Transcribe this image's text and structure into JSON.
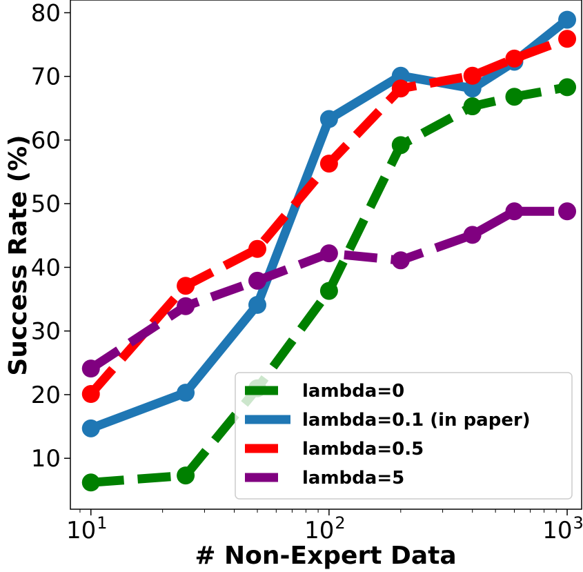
{
  "chart_data": {
    "type": "line",
    "title": "",
    "xlabel": "# Non-Expert Data",
    "ylabel": "Success Rate (%)",
    "xscale": "log",
    "xlim": [
      8.2,
      1150
    ],
    "ylim": [
      2,
      82
    ],
    "grid": false,
    "legend_position": "bottom-right",
    "x_ticks": [
      {
        "value": 10,
        "base": "10",
        "exp": "1"
      },
      {
        "value": 100,
        "base": "10",
        "exp": "2"
      },
      {
        "value": 1000,
        "base": "10",
        "exp": "3"
      }
    ],
    "y_ticks": [
      10,
      20,
      30,
      40,
      50,
      60,
      70,
      80
    ],
    "x": [
      10,
      25,
      50,
      100,
      200,
      400,
      600,
      1000
    ],
    "series": [
      {
        "name": "lambda=0",
        "color": "#008000",
        "style": "dashed",
        "values": [
          6.2,
          7.3,
          21.0,
          36.3,
          59.2,
          65.3,
          66.8,
          68.3
        ]
      },
      {
        "name": "lambda=0.1 (in paper)",
        "color": "#1f77b4",
        "style": "solid",
        "values": [
          14.7,
          20.3,
          34.1,
          63.3,
          70.1,
          68.1,
          72.3,
          78.9
        ]
      },
      {
        "name": "lambda=0.5",
        "color": "#ff0000",
        "style": "dashed",
        "values": [
          20.1,
          37.1,
          42.9,
          56.3,
          68.1,
          70.1,
          72.8,
          75.9
        ]
      },
      {
        "name": "lambda=5",
        "color": "#800080",
        "style": "dashed",
        "values": [
          24.1,
          33.9,
          37.9,
          42.2,
          41.1,
          45.1,
          48.8,
          48.8
        ]
      }
    ]
  }
}
